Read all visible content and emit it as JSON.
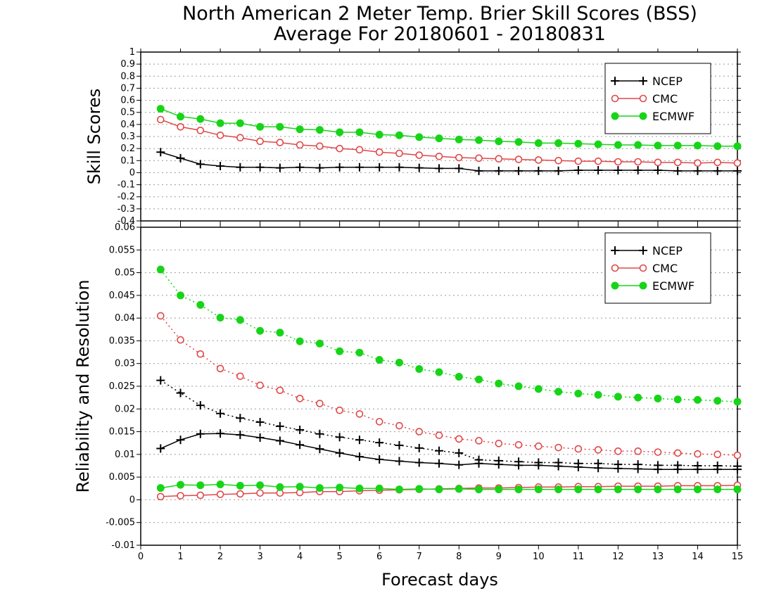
{
  "title_line1": "North American 2 Meter Temp. Brier Skill Scores (BSS)",
  "title_line2": "Average For 20180601 - 20180831",
  "xlabel": "Forecast days",
  "colors": {
    "NCEP": "#000000",
    "CMC": "#e04848",
    "ECMWF": "#18d418",
    "grid": "#9a9a9a"
  },
  "chart_data": [
    {
      "type": "line",
      "ylabel": "Skill Scores",
      "xlim": [
        0,
        15
      ],
      "ylim": [
        -0.4,
        1
      ],
      "grid": true,
      "legend_placement": "top-right",
      "x_ticks": [
        0,
        1,
        2,
        3,
        4,
        5,
        6,
        7,
        8,
        9,
        10,
        11,
        12,
        13,
        14,
        15
      ],
      "y_ticks": [
        -0.4,
        -0.3,
        -0.2,
        -0.1,
        0,
        0.1,
        0.2,
        0.3,
        0.4,
        0.5,
        0.6,
        0.7,
        0.8,
        0.9,
        1
      ],
      "x": [
        0.5,
        1,
        1.5,
        2,
        2.5,
        3,
        3.5,
        4,
        4.5,
        5,
        5.5,
        6,
        6.5,
        7,
        7.5,
        8,
        8.5,
        9,
        9.5,
        10,
        10.5,
        11,
        11.5,
        12,
        12.5,
        13,
        13.5,
        14,
        14.5,
        15
      ],
      "series": [
        {
          "name": "NCEP",
          "marker": "plus",
          "linestyle": "solid",
          "values": [
            0.17,
            0.12,
            0.07,
            0.055,
            0.045,
            0.045,
            0.04,
            0.045,
            0.04,
            0.045,
            0.045,
            0.045,
            0.045,
            0.04,
            0.035,
            0.035,
            0.015,
            0.015,
            0.015,
            0.015,
            0.015,
            0.02,
            0.02,
            0.02,
            0.02,
            0.02,
            0.015,
            0.015,
            0.015,
            0.015
          ]
        },
        {
          "name": "CMC",
          "marker": "open-circle",
          "linestyle": "solid",
          "values": [
            0.44,
            0.38,
            0.35,
            0.31,
            0.29,
            0.26,
            0.25,
            0.23,
            0.22,
            0.2,
            0.19,
            0.17,
            0.16,
            0.145,
            0.135,
            0.125,
            0.12,
            0.115,
            0.11,
            0.105,
            0.1,
            0.095,
            0.095,
            0.09,
            0.09,
            0.085,
            0.085,
            0.08,
            0.085,
            0.08
          ]
        },
        {
          "name": "ECMWF",
          "marker": "filled-circle",
          "linestyle": "solid",
          "values": [
            0.53,
            0.465,
            0.445,
            0.41,
            0.41,
            0.38,
            0.38,
            0.36,
            0.355,
            0.335,
            0.335,
            0.315,
            0.31,
            0.295,
            0.285,
            0.275,
            0.27,
            0.26,
            0.255,
            0.245,
            0.245,
            0.24,
            0.235,
            0.23,
            0.23,
            0.225,
            0.225,
            0.225,
            0.22,
            0.22
          ]
        }
      ]
    },
    {
      "type": "line",
      "ylabel": "Reliability and Resolution",
      "xlim": [
        0,
        15
      ],
      "ylim": [
        -0.01,
        0.06
      ],
      "grid": true,
      "legend_placement": "top-right",
      "x_ticks": [
        0,
        1,
        2,
        3,
        4,
        5,
        6,
        7,
        8,
        9,
        10,
        11,
        12,
        13,
        14,
        15
      ],
      "y_ticks": [
        -0.01,
        -0.005,
        0,
        0.005,
        0.01,
        0.015,
        0.02,
        0.025,
        0.03,
        0.035,
        0.04,
        0.045,
        0.05,
        0.055,
        0.06
      ],
      "x": [
        0.5,
        1,
        1.5,
        2,
        2.5,
        3,
        3.5,
        4,
        4.5,
        5,
        5.5,
        6,
        6.5,
        7,
        7.5,
        8,
        8.5,
        9,
        9.5,
        10,
        10.5,
        11,
        11.5,
        12,
        12.5,
        13,
        13.5,
        14,
        14.5,
        15
      ],
      "series": [
        {
          "name": "NCEP",
          "marker": "plus",
          "linestyle": "dotted",
          "legend": false,
          "values": [
            0.0263,
            0.0235,
            0.0208,
            0.019,
            0.018,
            0.0171,
            0.0162,
            0.0154,
            0.0145,
            0.0138,
            0.0132,
            0.0126,
            0.012,
            0.0114,
            0.0108,
            0.0103,
            0.0088,
            0.0086,
            0.0084,
            0.0082,
            0.0082,
            0.008,
            0.008,
            0.0078,
            0.0078,
            0.0076,
            0.0076,
            0.0075,
            0.0075,
            0.0074
          ]
        },
        {
          "name": "NCEP",
          "marker": "plus",
          "linestyle": "solid",
          "values": [
            0.0113,
            0.0132,
            0.0145,
            0.0146,
            0.0143,
            0.0137,
            0.013,
            0.0121,
            0.0112,
            0.0103,
            0.0095,
            0.0089,
            0.0085,
            0.0082,
            0.008,
            0.0077,
            0.008,
            0.0078,
            0.0076,
            0.0076,
            0.0074,
            0.0072,
            0.007,
            0.0069,
            0.0068,
            0.0067,
            0.0067,
            0.0067,
            0.0067,
            0.0067
          ]
        },
        {
          "name": "CMC",
          "marker": "open-circle",
          "linestyle": "dotted",
          "legend": false,
          "values": [
            0.0405,
            0.0352,
            0.0321,
            0.0289,
            0.0272,
            0.0252,
            0.0241,
            0.0223,
            0.0212,
            0.0197,
            0.0189,
            0.0172,
            0.0163,
            0.015,
            0.0142,
            0.0134,
            0.013,
            0.0124,
            0.0121,
            0.0118,
            0.0115,
            0.0112,
            0.011,
            0.0107,
            0.0107,
            0.0105,
            0.0103,
            0.0101,
            0.01,
            0.0098
          ]
        },
        {
          "name": "CMC",
          "marker": "open-circle",
          "linestyle": "solid",
          "values": [
            0.0007,
            0.0009,
            0.001,
            0.0012,
            0.0013,
            0.0015,
            0.0015,
            0.0016,
            0.0018,
            0.0018,
            0.002,
            0.0021,
            0.0022,
            0.0023,
            0.0024,
            0.0025,
            0.0026,
            0.0026,
            0.0027,
            0.0028,
            0.0028,
            0.0029,
            0.0029,
            0.003,
            0.003,
            0.003,
            0.0031,
            0.0031,
            0.0031,
            0.0032
          ]
        },
        {
          "name": "ECMWF",
          "marker": "filled-circle",
          "linestyle": "dotted",
          "legend": false,
          "values": [
            0.0507,
            0.045,
            0.0429,
            0.0401,
            0.0396,
            0.0372,
            0.0368,
            0.0349,
            0.0344,
            0.0327,
            0.0324,
            0.0308,
            0.0302,
            0.0288,
            0.0281,
            0.0271,
            0.0265,
            0.0256,
            0.025,
            0.0244,
            0.0238,
            0.0234,
            0.0231,
            0.0227,
            0.0225,
            0.0223,
            0.0221,
            0.022,
            0.0218,
            0.0216
          ]
        },
        {
          "name": "ECMWF",
          "marker": "filled-circle",
          "linestyle": "solid",
          "values": [
            0.0026,
            0.0033,
            0.0032,
            0.0034,
            0.0031,
            0.0032,
            0.0028,
            0.0029,
            0.0026,
            0.0027,
            0.0025,
            0.0025,
            0.0023,
            0.0024,
            0.0023,
            0.0024,
            0.0023,
            0.0023,
            0.0023,
            0.0023,
            0.0023,
            0.0023,
            0.0023,
            0.0023,
            0.0023,
            0.0023,
            0.0023,
            0.0023,
            0.0023,
            0.0023
          ]
        }
      ]
    }
  ]
}
